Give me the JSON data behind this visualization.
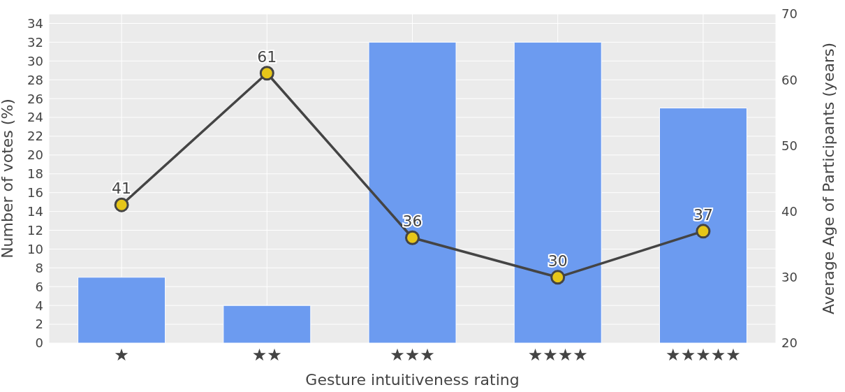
{
  "chart_data": {
    "type": "bar",
    "xlabel": "Gesture intuitiveness rating",
    "ylabel": "Number of votes (%)",
    "y2label": "Average Age of Participants (years)",
    "categories": [
      "★",
      "★★",
      "★★★",
      "★★★★",
      "★★★★★"
    ],
    "series": [
      {
        "color": "#6c9bf0",
        "values": [
          7,
          4,
          32,
          32,
          25
        ]
      },
      {
        "type": "line",
        "axis": "y2",
        "color": "#444444",
        "values": [
          41,
          61,
          36,
          30,
          37
        ],
        "value_labels": [
          "41",
          "61",
          "36",
          "30",
          "37"
        ]
      }
    ],
    "ylim": [
      0,
      35
    ],
    "yticks": [
      0,
      2,
      4,
      6,
      8,
      10,
      12,
      14,
      16,
      18,
      20,
      22,
      24,
      26,
      28,
      30,
      32,
      34
    ],
    "y2lim": [
      20,
      70
    ],
    "y2ticks": [
      20,
      30,
      40,
      50,
      60,
      70
    ],
    "grid": true,
    "marker": "circle",
    "line_style": "solid"
  }
}
